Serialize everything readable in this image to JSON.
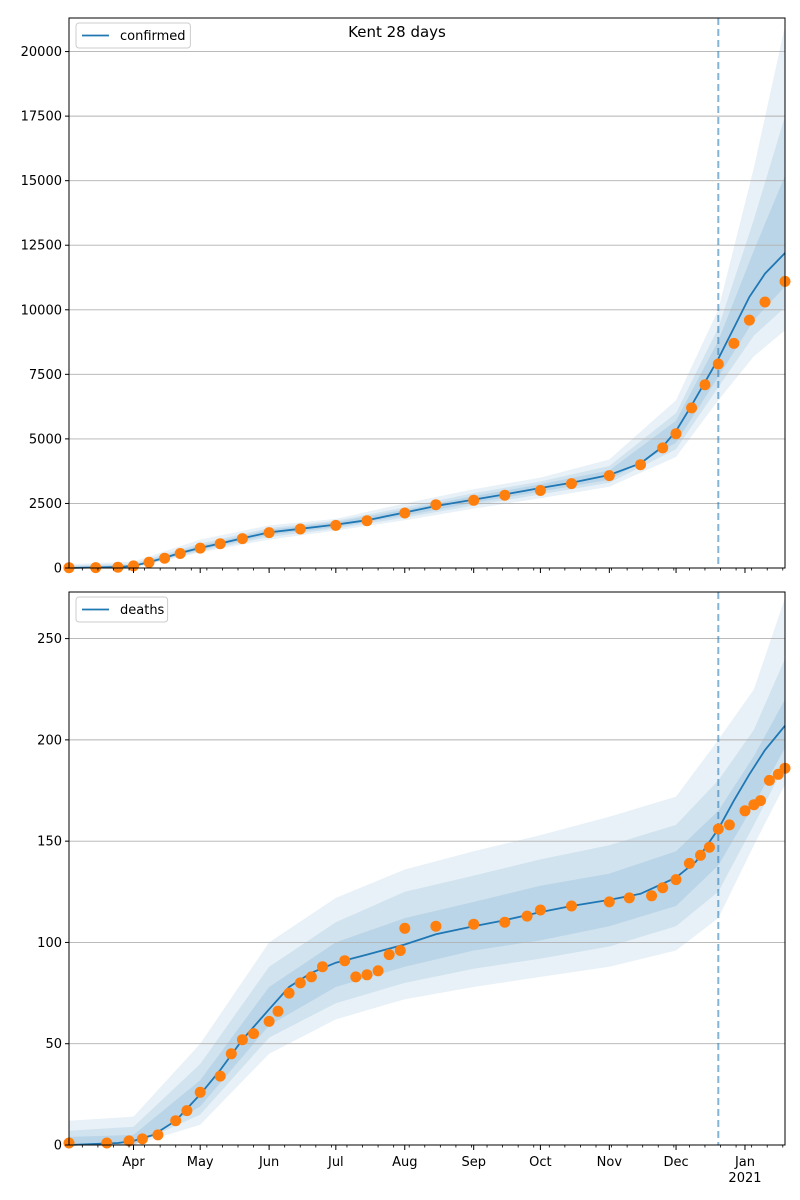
{
  "chart_data": [
    {
      "type": "line",
      "title": "Kent 28 days",
      "x_axis": {
        "type": "date",
        "range": [
          "2020-03-03",
          "2021-01-19"
        ],
        "tick_labels": [
          {
            "date": "2020-04-01",
            "label": "Apr"
          },
          {
            "date": "2020-05-01",
            "label": "May"
          },
          {
            "date": "2020-06-01",
            "label": "Jun"
          },
          {
            "date": "2020-07-01",
            "label": "Jul"
          },
          {
            "date": "2020-08-01",
            "label": "Aug"
          },
          {
            "date": "2020-09-01",
            "label": "Sep"
          },
          {
            "date": "2020-10-01",
            "label": "Oct"
          },
          {
            "date": "2020-11-01",
            "label": "Nov"
          },
          {
            "date": "2020-12-01",
            "label": "Dec"
          },
          {
            "date": "2021-01-01",
            "label": "Jan",
            "sublabel": "2021"
          }
        ],
        "show_tick_labels": false
      },
      "y_axis": {
        "range": [
          0,
          21300
        ],
        "ticks": [
          0,
          2500,
          5000,
          7500,
          10000,
          12500,
          15000,
          17500,
          20000
        ]
      },
      "grid": {
        "y": true,
        "x": false
      },
      "legend": {
        "placement": "top-left",
        "entries": [
          "confirmed"
        ]
      },
      "forecast_start": "2020-12-20",
      "series": [
        {
          "name": "confirmed",
          "kind": "model-median",
          "color": "#1f77b4",
          "points": [
            [
              "2020-03-03",
              0
            ],
            [
              "2020-03-25",
              40
            ],
            [
              "2020-04-01",
              80
            ],
            [
              "2020-04-08",
              220
            ],
            [
              "2020-04-15",
              400
            ],
            [
              "2020-04-22",
              580
            ],
            [
              "2020-05-01",
              780
            ],
            [
              "2020-05-10",
              950
            ],
            [
              "2020-05-20",
              1150
            ],
            [
              "2020-06-01",
              1380
            ],
            [
              "2020-06-15",
              1520
            ],
            [
              "2020-07-01",
              1680
            ],
            [
              "2020-07-15",
              1850
            ],
            [
              "2020-08-01",
              2150
            ],
            [
              "2020-08-15",
              2400
            ],
            [
              "2020-09-01",
              2650
            ],
            [
              "2020-09-15",
              2850
            ],
            [
              "2020-10-01",
              3100
            ],
            [
              "2020-10-15",
              3300
            ],
            [
              "2020-11-01",
              3600
            ],
            [
              "2020-11-15",
              4050
            ],
            [
              "2020-11-25",
              4700
            ],
            [
              "2020-12-01",
              5300
            ],
            [
              "2020-12-08",
              6300
            ],
            [
              "2020-12-14",
              7200
            ],
            [
              "2020-12-20",
              8100
            ],
            [
              "2020-12-27",
              9300
            ],
            [
              "2021-01-03",
              10500
            ],
            [
              "2021-01-10",
              11400
            ],
            [
              "2021-01-19",
              12200
            ]
          ]
        },
        {
          "name": "",
          "kind": "observed",
          "color": "#ff7f0e",
          "points": [
            [
              "2020-03-03",
              10
            ],
            [
              "2020-03-15",
              15
            ],
            [
              "2020-03-25",
              30
            ],
            [
              "2020-04-01",
              80
            ],
            [
              "2020-04-08",
              220
            ],
            [
              "2020-04-15",
              380
            ],
            [
              "2020-04-22",
              560
            ],
            [
              "2020-05-01",
              770
            ],
            [
              "2020-05-10",
              940
            ],
            [
              "2020-05-20",
              1140
            ],
            [
              "2020-06-01",
              1370
            ],
            [
              "2020-06-15",
              1510
            ],
            [
              "2020-07-01",
              1650
            ],
            [
              "2020-07-15",
              1830
            ],
            [
              "2020-08-01",
              2130
            ],
            [
              "2020-08-15",
              2450
            ],
            [
              "2020-09-01",
              2620
            ],
            [
              "2020-09-15",
              2820
            ],
            [
              "2020-10-01",
              3000
            ],
            [
              "2020-10-15",
              3270
            ],
            [
              "2020-11-01",
              3580
            ],
            [
              "2020-11-15",
              4000
            ],
            [
              "2020-11-25",
              4650
            ],
            [
              "2020-12-01",
              5200
            ],
            [
              "2020-12-08",
              6200
            ],
            [
              "2020-12-14",
              7100
            ],
            [
              "2020-12-20",
              7900
            ],
            [
              "2020-12-27",
              8700
            ],
            [
              "2021-01-03",
              9600
            ],
            [
              "2021-01-10",
              10300
            ],
            [
              "2021-01-19",
              11100
            ]
          ]
        }
      ],
      "credible_bands": [
        {
          "x": [
            "2020-03-03",
            "2020-04-01",
            "2020-05-01",
            "2020-06-01",
            "2020-07-01",
            "2020-08-01",
            "2020-09-01",
            "2020-10-01",
            "2020-11-01",
            "2020-12-01",
            "2020-12-20",
            "2021-01-05",
            "2021-01-19"
          ],
          "lower": [
            0,
            20,
            600,
            1100,
            1450,
            1850,
            2300,
            2700,
            3150,
            4300,
            6500,
            8200,
            9200
          ],
          "upper": [
            150,
            250,
            1100,
            1650,
            1900,
            2500,
            3050,
            3500,
            4200,
            6500,
            10000,
            15500,
            21000
          ]
        },
        {
          "x": [
            "2020-03-03",
            "2020-04-01",
            "2020-05-01",
            "2020-06-01",
            "2020-07-01",
            "2020-08-01",
            "2020-09-01",
            "2020-10-01",
            "2020-11-01",
            "2020-12-01",
            "2020-12-20",
            "2021-01-05",
            "2021-01-19"
          ],
          "lower": [
            0,
            40,
            650,
            1200,
            1520,
            1950,
            2420,
            2850,
            3300,
            4600,
            7000,
            9000,
            10100
          ],
          "upper": [
            100,
            180,
            950,
            1550,
            1830,
            2350,
            2900,
            3350,
            3950,
            6000,
            9300,
            13500,
            17500
          ]
        },
        {
          "x": [
            "2020-03-03",
            "2020-04-01",
            "2020-05-01",
            "2020-06-01",
            "2020-07-01",
            "2020-08-01",
            "2020-09-01",
            "2020-10-01",
            "2020-11-01",
            "2020-12-01",
            "2020-12-20",
            "2021-01-05",
            "2021-01-19"
          ],
          "lower": [
            0,
            60,
            700,
            1280,
            1580,
            2030,
            2520,
            2960,
            3420,
            4850,
            7400,
            9600,
            10900
          ],
          "upper": [
            60,
            120,
            870,
            1480,
            1780,
            2260,
            2790,
            3240,
            3780,
            5700,
            8800,
            12300,
            15200
          ]
        }
      ]
    },
    {
      "type": "line",
      "title": "",
      "x_axis": {
        "type": "date",
        "range": [
          "2020-03-03",
          "2021-01-19"
        ],
        "tick_labels": [
          {
            "date": "2020-04-01",
            "label": "Apr"
          },
          {
            "date": "2020-05-01",
            "label": "May"
          },
          {
            "date": "2020-06-01",
            "label": "Jun"
          },
          {
            "date": "2020-07-01",
            "label": "Jul"
          },
          {
            "date": "2020-08-01",
            "label": "Aug"
          },
          {
            "date": "2020-09-01",
            "label": "Sep"
          },
          {
            "date": "2020-10-01",
            "label": "Oct"
          },
          {
            "date": "2020-11-01",
            "label": "Nov"
          },
          {
            "date": "2020-12-01",
            "label": "Dec"
          },
          {
            "date": "2021-01-01",
            "label": "Jan",
            "sublabel": "2021"
          }
        ],
        "show_tick_labels": true
      },
      "y_axis": {
        "range": [
          0,
          273
        ],
        "ticks": [
          0,
          50,
          100,
          150,
          200,
          250
        ]
      },
      "grid": {
        "y": true,
        "x": false
      },
      "legend": {
        "placement": "top-left",
        "entries": [
          "deaths"
        ]
      },
      "forecast_start": "2020-12-20",
      "series": [
        {
          "name": "deaths",
          "kind": "model-median",
          "color": "#1f77b4",
          "points": [
            [
              "2020-03-03",
              0
            ],
            [
              "2020-03-25",
              1
            ],
            [
              "2020-04-01",
              2
            ],
            [
              "2020-04-10",
              5
            ],
            [
              "2020-04-20",
              12
            ],
            [
              "2020-05-01",
              25
            ],
            [
              "2020-05-10",
              37
            ],
            [
              "2020-05-20",
              52
            ],
            [
              "2020-06-01",
              67
            ],
            [
              "2020-06-10",
              78
            ],
            [
              "2020-06-20",
              85
            ],
            [
              "2020-07-01",
              90
            ],
            [
              "2020-07-15",
              94
            ],
            [
              "2020-08-01",
              99
            ],
            [
              "2020-08-15",
              104
            ],
            [
              "2020-09-01",
              108
            ],
            [
              "2020-09-15",
              111
            ],
            [
              "2020-10-01",
              115
            ],
            [
              "2020-10-15",
              118
            ],
            [
              "2020-11-01",
              121
            ],
            [
              "2020-11-15",
              124
            ],
            [
              "2020-12-01",
              132
            ],
            [
              "2020-12-10",
              140
            ],
            [
              "2020-12-20",
              156
            ],
            [
              "2020-12-27",
              170
            ],
            [
              "2021-01-03",
              183
            ],
            [
              "2021-01-10",
              195
            ],
            [
              "2021-01-19",
              207
            ]
          ]
        },
        {
          "name": "",
          "kind": "observed",
          "color": "#ff7f0e",
          "points": [
            [
              "2020-03-03",
              1
            ],
            [
              "2020-03-20",
              1
            ],
            [
              "2020-03-30",
              2
            ],
            [
              "2020-04-05",
              3
            ],
            [
              "2020-04-12",
              5
            ],
            [
              "2020-04-20",
              12
            ],
            [
              "2020-04-25",
              17
            ],
            [
              "2020-05-01",
              26
            ],
            [
              "2020-05-10",
              34
            ],
            [
              "2020-05-15",
              45
            ],
            [
              "2020-05-20",
              52
            ],
            [
              "2020-05-25",
              55
            ],
            [
              "2020-06-01",
              61
            ],
            [
              "2020-06-05",
              66
            ],
            [
              "2020-06-10",
              75
            ],
            [
              "2020-06-15",
              80
            ],
            [
              "2020-06-20",
              83
            ],
            [
              "2020-06-25",
              88
            ],
            [
              "2020-07-05",
              91
            ],
            [
              "2020-07-10",
              83
            ],
            [
              "2020-07-15",
              84
            ],
            [
              "2020-07-20",
              86
            ],
            [
              "2020-07-25",
              94
            ],
            [
              "2020-07-30",
              96
            ],
            [
              "2020-08-01",
              107
            ],
            [
              "2020-08-15",
              108
            ],
            [
              "2020-09-01",
              109
            ],
            [
              "2020-09-15",
              110
            ],
            [
              "2020-09-25",
              113
            ],
            [
              "2020-10-01",
              116
            ],
            [
              "2020-10-15",
              118
            ],
            [
              "2020-11-01",
              120
            ],
            [
              "2020-11-10",
              122
            ],
            [
              "2020-11-20",
              123
            ],
            [
              "2020-11-25",
              127
            ],
            [
              "2020-12-01",
              131
            ],
            [
              "2020-12-07",
              139
            ],
            [
              "2020-12-12",
              143
            ],
            [
              "2020-12-16",
              147
            ],
            [
              "2020-12-20",
              156
            ],
            [
              "2020-12-25",
              158
            ],
            [
              "2021-01-01",
              165
            ],
            [
              "2021-01-05",
              168
            ],
            [
              "2021-01-08",
              170
            ],
            [
              "2021-01-12",
              180
            ],
            [
              "2021-01-16",
              183
            ],
            [
              "2021-01-19",
              186
            ]
          ]
        }
      ],
      "credible_bands": [
        {
          "x": [
            "2020-03-03",
            "2020-04-01",
            "2020-05-01",
            "2020-06-01",
            "2020-07-01",
            "2020-08-01",
            "2020-09-01",
            "2020-10-01",
            "2020-11-01",
            "2020-12-01",
            "2020-12-20",
            "2021-01-05",
            "2021-01-19"
          ],
          "lower": [
            0,
            0,
            10,
            45,
            62,
            72,
            78,
            83,
            88,
            96,
            112,
            148,
            178
          ],
          "upper": [
            12,
            14,
            50,
            100,
            122,
            136,
            145,
            153,
            162,
            172,
            200,
            225,
            270
          ]
        },
        {
          "x": [
            "2020-03-03",
            "2020-04-01",
            "2020-05-01",
            "2020-06-01",
            "2020-07-01",
            "2020-08-01",
            "2020-09-01",
            "2020-10-01",
            "2020-11-01",
            "2020-12-01",
            "2020-12-20",
            "2021-01-05",
            "2021-01-19"
          ],
          "lower": [
            0,
            0,
            15,
            53,
            70,
            80,
            87,
            92,
            98,
            108,
            125,
            158,
            188
          ],
          "upper": [
            7,
            9,
            40,
            88,
            110,
            125,
            133,
            141,
            148,
            158,
            180,
            205,
            240
          ]
        },
        {
          "x": [
            "2020-03-03",
            "2020-04-01",
            "2020-05-01",
            "2020-06-01",
            "2020-07-01",
            "2020-08-01",
            "2020-09-01",
            "2020-10-01",
            "2020-11-01",
            "2020-12-01",
            "2020-12-20",
            "2021-01-05",
            "2021-01-19"
          ],
          "lower": [
            0,
            0,
            19,
            59,
            78,
            88,
            96,
            101,
            108,
            118,
            138,
            168,
            196
          ],
          "upper": [
            4,
            5,
            32,
            78,
            100,
            112,
            120,
            128,
            134,
            145,
            165,
            192,
            220
          ]
        }
      ]
    }
  ]
}
